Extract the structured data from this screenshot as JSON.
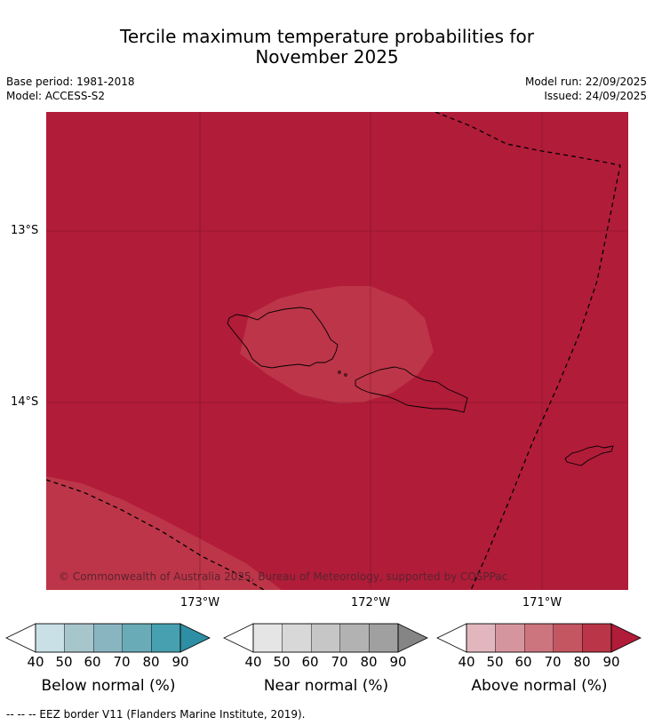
{
  "header": {
    "title_line1": "Tercile maximum temperature probabilities for",
    "title_line2": "November 2025",
    "base_period": "Base period: 1981-2018",
    "model": "Model: ACCESS-S2",
    "model_run": "Model run: 22/09/2025",
    "issued": "Issued: 24/09/2025"
  },
  "map": {
    "lat_labels": [
      "13°S",
      "14°S"
    ],
    "lon_labels": [
      "173°W",
      "172°W",
      "171°W"
    ],
    "copyright": "© Commonwealth of Australia 2025, Bureau of Meteorology, supported by COSPPac",
    "colors": {
      "above_90": "#b11c39",
      "above_80": "#bd3548",
      "coast": "#000000",
      "grid": "#6e1222"
    }
  },
  "legends": [
    {
      "label": "Below normal (%)",
      "ticks": [
        "40",
        "50",
        "60",
        "70",
        "80",
        "90"
      ],
      "colors": [
        "#ffffff",
        "#c8e0e6",
        "#a7c6cc",
        "#89b5c0",
        "#6aabb8",
        "#46a0b0",
        "#2e8ea3"
      ]
    },
    {
      "label": "Near normal (%)",
      "ticks": [
        "40",
        "50",
        "60",
        "70",
        "80",
        "90"
      ],
      "colors": [
        "#ffffff",
        "#e5e5e5",
        "#d8d8d8",
        "#c6c6c6",
        "#b2b2b2",
        "#a0a0a0",
        "#858585"
      ]
    },
    {
      "label": "Above normal (%)",
      "ticks": [
        "40",
        "50",
        "60",
        "70",
        "80",
        "90"
      ],
      "colors": [
        "#ffffff",
        "#e1b7bd",
        "#d5959e",
        "#cc757f",
        "#c45662",
        "#bb3548",
        "#b11c39"
      ]
    }
  ],
  "footnote": "--  --  -- EEZ border V11 (Flanders Marine Institute, 2019)."
}
